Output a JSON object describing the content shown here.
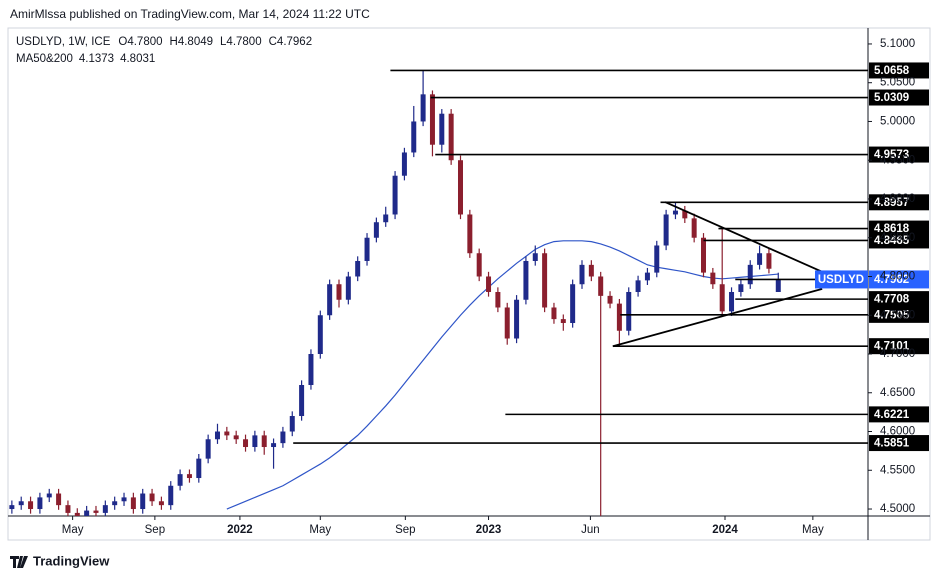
{
  "chart_data": {
    "type": "candlestick",
    "header": "AmirMlssa published on TradingView.com, Mar 14, 2024 11:22 UTC",
    "symbol": "USDLYD, 1W, ICE",
    "ohlc_legend": [
      {
        "key": "O",
        "value": "4.7800"
      },
      {
        "key": "H",
        "value": "4.8049"
      },
      {
        "key": "L",
        "value": "4.7800"
      },
      {
        "key": "C",
        "value": "4.7962"
      }
    ],
    "ma_legend": {
      "name": "MA50&200",
      "values": [
        "4.1373",
        "4.8031"
      ]
    },
    "ticker": "USDLYD",
    "brand": "TradingView",
    "up_color": "#1f2a8a",
    "down_color": "#8b1f2e",
    "x": [
      0,
      1,
      2,
      3,
      4,
      5,
      6,
      7,
      8,
      9,
      10,
      11,
      12,
      13,
      14,
      15,
      16,
      17,
      18,
      19,
      20,
      21,
      22,
      23,
      24,
      25,
      26,
      27,
      28,
      29,
      30,
      31,
      32,
      33,
      34,
      35,
      36,
      37,
      38,
      39,
      40,
      41,
      42,
      43,
      44,
      45,
      46,
      47,
      48,
      49,
      50,
      51,
      52,
      53,
      54,
      55,
      56,
      57,
      58,
      59,
      60,
      61,
      62,
      63,
      64,
      65,
      66,
      67,
      68,
      69,
      70,
      71,
      72,
      73,
      74,
      75,
      76,
      77,
      78,
      79,
      80,
      81,
      82
    ],
    "open": [
      4.5,
      4.505,
      4.51,
      4.5,
      4.515,
      4.52,
      4.505,
      4.495,
      4.49,
      4.498,
      4.495,
      4.505,
      4.51,
      4.515,
      4.5,
      4.52,
      4.51,
      4.505,
      4.53,
      4.545,
      4.54,
      4.565,
      4.59,
      4.6,
      4.595,
      4.59,
      4.58,
      4.595,
      4.58,
      4.585,
      4.6,
      4.62,
      4.66,
      4.7,
      4.75,
      4.79,
      4.77,
      4.8,
      4.82,
      4.85,
      4.87,
      4.88,
      4.93,
      4.96,
      5.0,
      5.035,
      4.97,
      5.01,
      4.95,
      4.88,
      4.83,
      4.8,
      4.78,
      4.76,
      4.72,
      4.77,
      4.82,
      4.83,
      4.76,
      4.745,
      4.74,
      4.79,
      4.815,
      4.8,
      4.775,
      4.765,
      4.73,
      4.78,
      4.795,
      4.805,
      4.84,
      4.88,
      4.885,
      4.875,
      4.85,
      4.805,
      4.79,
      4.755,
      4.78,
      4.79,
      4.815,
      4.83,
      4.78
    ],
    "high": [
      4.511,
      4.516,
      4.516,
      4.521,
      4.526,
      4.526,
      4.511,
      4.501,
      4.504,
      4.504,
      4.511,
      4.516,
      4.521,
      4.521,
      4.526,
      4.526,
      4.516,
      4.536,
      4.551,
      4.551,
      4.571,
      4.596,
      4.61,
      4.606,
      4.601,
      4.596,
      4.601,
      4.601,
      4.591,
      4.606,
      4.626,
      4.666,
      4.706,
      4.756,
      4.796,
      4.796,
      4.806,
      4.826,
      4.856,
      4.876,
      4.89,
      4.936,
      4.966,
      5.02,
      5.066,
      5.04,
      5.016,
      5.016,
      4.956,
      4.886,
      4.836,
      4.806,
      4.786,
      4.766,
      4.776,
      4.826,
      4.84,
      4.836,
      4.766,
      4.751,
      4.796,
      4.821,
      4.821,
      4.806,
      4.781,
      4.771,
      4.786,
      4.801,
      4.811,
      4.846,
      4.886,
      4.896,
      4.891,
      4.881,
      4.856,
      4.811,
      4.862,
      4.786,
      4.796,
      4.821,
      4.84,
      4.836,
      4.8049
    ],
    "low": [
      4.494,
      4.499,
      4.494,
      4.494,
      4.509,
      4.499,
      4.489,
      4.484,
      4.484,
      4.489,
      4.489,
      4.499,
      4.504,
      4.494,
      4.494,
      4.504,
      4.499,
      4.499,
      4.524,
      4.534,
      4.534,
      4.559,
      4.584,
      4.589,
      4.584,
      4.574,
      4.574,
      4.57,
      4.552,
      4.579,
      4.594,
      4.614,
      4.654,
      4.694,
      4.744,
      4.76,
      4.764,
      4.794,
      4.814,
      4.844,
      4.864,
      4.874,
      4.924,
      4.954,
      4.994,
      4.955,
      4.96,
      4.944,
      4.874,
      4.824,
      4.794,
      4.774,
      4.754,
      4.712,
      4.714,
      4.764,
      4.814,
      4.754,
      4.739,
      4.73,
      4.734,
      4.784,
      4.794,
      4.491,
      4.759,
      4.71,
      4.724,
      4.774,
      4.789,
      4.799,
      4.834,
      4.874,
      4.869,
      4.844,
      4.799,
      4.784,
      4.75,
      4.749,
      4.774,
      4.784,
      4.809,
      4.804,
      4.78
    ],
    "close": [
      4.505,
      4.51,
      4.5,
      4.515,
      4.52,
      4.505,
      4.495,
      4.49,
      4.498,
      4.495,
      4.505,
      4.51,
      4.515,
      4.5,
      4.52,
      4.51,
      4.505,
      4.53,
      4.545,
      4.54,
      4.565,
      4.59,
      4.6,
      4.595,
      4.59,
      4.58,
      4.595,
      4.58,
      4.585,
      4.6,
      4.62,
      4.66,
      4.7,
      4.75,
      4.79,
      4.77,
      4.8,
      4.82,
      4.85,
      4.87,
      4.88,
      4.93,
      4.96,
      5.0,
      5.035,
      4.97,
      5.01,
      4.95,
      4.88,
      4.83,
      4.8,
      4.78,
      4.76,
      4.72,
      4.77,
      4.82,
      4.83,
      4.76,
      4.745,
      4.74,
      4.79,
      4.815,
      4.8,
      4.775,
      4.765,
      4.73,
      4.78,
      4.795,
      4.805,
      4.84,
      4.88,
      4.885,
      4.875,
      4.85,
      4.805,
      4.79,
      4.755,
      4.78,
      4.79,
      4.815,
      4.83,
      4.81,
      4.7962
    ],
    "ma": {
      "color": "#2f55c8",
      "values": [
        null,
        null,
        null,
        null,
        null,
        null,
        null,
        null,
        null,
        null,
        null,
        null,
        null,
        null,
        null,
        null,
        null,
        null,
        null,
        null,
        null,
        null,
        null,
        4.5,
        4.505,
        4.51,
        4.515,
        4.52,
        4.525,
        4.53,
        4.537,
        4.544,
        4.551,
        4.558,
        4.566,
        4.575,
        4.585,
        4.595,
        4.607,
        4.62,
        4.633,
        4.647,
        4.662,
        4.677,
        4.692,
        4.707,
        4.722,
        4.736,
        4.75,
        4.763,
        4.775,
        4.786,
        4.797,
        4.807,
        4.817,
        4.826,
        4.835,
        4.841,
        4.845,
        4.846,
        4.846,
        4.846,
        4.845,
        4.842,
        4.838,
        4.833,
        4.827,
        4.821,
        4.815,
        4.812,
        4.81,
        4.808,
        4.806,
        4.803,
        4.8,
        4.798,
        4.797,
        4.798,
        4.799,
        4.8,
        4.801,
        4.802,
        4.8031
      ]
    },
    "levels": [
      {
        "value": 5.0658,
        "start": 40.5
      },
      {
        "value": 5.0309,
        "start": 44.8
      },
      {
        "value": 4.9573,
        "start": 45.3
      },
      {
        "value": 4.8957,
        "start": 69.4
      },
      {
        "value": 4.8618,
        "start": 75.6
      },
      {
        "value": 4.8465,
        "start": 74.0
      },
      {
        "value": 4.7708,
        "start": 77.4
      },
      {
        "value": 4.7505,
        "start": 65.1
      },
      {
        "value": 4.7101,
        "start": 64.3
      },
      {
        "value": 4.6221,
        "start": 52.8
      },
      {
        "value": 4.5851,
        "start": 30.1
      }
    ],
    "current_price_start": 77.4,
    "trendlines": [
      {
        "x": [
          69.9,
          86.7
        ],
        "y": [
          4.896,
          4.806
        ]
      },
      {
        "x": [
          64.3,
          86.7
        ],
        "y": [
          4.71,
          4.784
        ]
      }
    ],
    "xlim": [
      -0.2,
      91.6
    ],
    "ylim": [
      4.491,
      5.118
    ],
    "yticks": [
      {
        "value": 4.5,
        "label": "4.5000"
      },
      {
        "value": 4.55,
        "label": "4.5500"
      },
      {
        "value": 4.6,
        "label": "4.6000"
      },
      {
        "value": 4.65,
        "label": "4.6500"
      },
      {
        "value": 4.7,
        "label": "4.7000"
      },
      {
        "value": 4.75,
        "label": "4.7500"
      },
      {
        "value": 4.8,
        "label": "4.8000"
      },
      {
        "value": 4.85,
        "label": "4.8500"
      },
      {
        "value": 4.9,
        "label": "4.9000"
      },
      {
        "value": 4.95,
        "label": "4.9500"
      },
      {
        "value": 5.0,
        "label": "5.0000"
      },
      {
        "value": 5.05,
        "label": "5.0500"
      },
      {
        "value": 5.1,
        "label": "5.1000"
      }
    ],
    "xticks": [
      {
        "value": 6.5,
        "label": "May"
      },
      {
        "value": 15.3,
        "label": "Sep"
      },
      {
        "value": 24.4,
        "label": "2022"
      },
      {
        "value": 33.0,
        "label": "May"
      },
      {
        "value": 42.1,
        "label": "Sep"
      },
      {
        "value": 51.0,
        "label": "2023"
      },
      {
        "value": 61.9,
        "label": "Jun"
      },
      {
        "value": 76.3,
        "label": "2024"
      },
      {
        "value": 85.7,
        "label": "May"
      }
    ],
    "bold_xticks": [
      "2022",
      "2023",
      "2024"
    ]
  }
}
